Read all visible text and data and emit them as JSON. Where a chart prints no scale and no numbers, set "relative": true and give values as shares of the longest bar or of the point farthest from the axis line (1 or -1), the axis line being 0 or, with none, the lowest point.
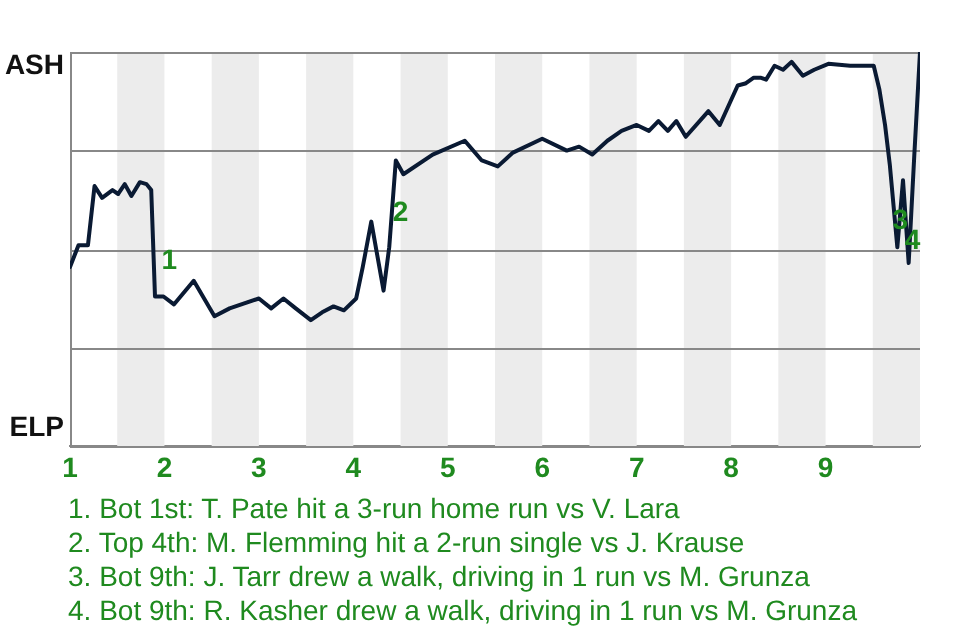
{
  "chart_data": {
    "type": "line",
    "relative": true,
    "xlim": [
      1,
      10
    ],
    "xticks": [
      1,
      2,
      3,
      4,
      5,
      6,
      7,
      8,
      9
    ],
    "grid": "y",
    "legend": false,
    "marker": "none",
    "line_style": "solid",
    "series": [
      {
        "color": "#0a1a33",
        "x": [
          1,
          1.09,
          1.19,
          1.26,
          1.34,
          1.45,
          1.51,
          1.58,
          1.65,
          1.74,
          1.81,
          1.86,
          1.9,
          1.99,
          2.1,
          2.31,
          2.53,
          2.69,
          3,
          3.13,
          3.26,
          3.39,
          3.55,
          3.67,
          3.79,
          3.9,
          4.03,
          4.1,
          4.19,
          4.32,
          4.38,
          4.45,
          4.53,
          4.84,
          5.18,
          5.36,
          5.53,
          5.69,
          6,
          6.26,
          6.39,
          6.53,
          6.69,
          6.84,
          7,
          7.13,
          7.23,
          7.33,
          7.42,
          7.52,
          7.76,
          7.88,
          8.07,
          8.15,
          8.24,
          8.31,
          8.37,
          8.46,
          8.55,
          8.64,
          8.76,
          8.88,
          9.03,
          9.26,
          9.51,
          9.57,
          9.63,
          9.68,
          9.76,
          9.82,
          9.88,
          9.94,
          10
        ],
        "values": [
          0.455,
          0.51,
          0.51,
          0.66,
          0.63,
          0.65,
          0.64,
          0.665,
          0.635,
          0.67,
          0.665,
          0.65,
          0.38,
          0.38,
          0.36,
          0.42,
          0.33,
          0.35,
          0.375,
          0.35,
          0.375,
          0.35,
          0.32,
          0.34,
          0.355,
          0.345,
          0.375,
          0.455,
          0.57,
          0.395,
          0.505,
          0.725,
          0.69,
          0.74,
          0.775,
          0.725,
          0.71,
          0.745,
          0.78,
          0.75,
          0.76,
          0.74,
          0.775,
          0.8,
          0.815,
          0.8,
          0.825,
          0.8,
          0.825,
          0.785,
          0.85,
          0.815,
          0.915,
          0.92,
          0.935,
          0.935,
          0.93,
          0.965,
          0.955,
          0.975,
          0.94,
          0.955,
          0.97,
          0.965,
          0.965,
          0.905,
          0.815,
          0.715,
          0.505,
          0.675,
          0.465,
          0.74,
          1
        ]
      }
    ],
    "bands": [
      {
        "axis": "x",
        "from": 1.5,
        "to": 2,
        "color": "#ececec"
      },
      {
        "axis": "x",
        "from": 2.5,
        "to": 3,
        "color": "#ececec"
      },
      {
        "axis": "x",
        "from": 3.5,
        "to": 4,
        "color": "#ececec"
      },
      {
        "axis": "x",
        "from": 4.5,
        "to": 5,
        "color": "#ececec"
      },
      {
        "axis": "x",
        "from": 5.5,
        "to": 6,
        "color": "#ececec"
      },
      {
        "axis": "x",
        "from": 6.5,
        "to": 7,
        "color": "#ececec"
      },
      {
        "axis": "x",
        "from": 7.5,
        "to": 8,
        "color": "#ececec"
      },
      {
        "axis": "x",
        "from": 8.5,
        "to": 9,
        "color": "#ececec"
      },
      {
        "axis": "x",
        "from": 9.5,
        "to": 10,
        "color": "#ececec"
      }
    ],
    "annotations": [
      "ASH",
      "ELP",
      {
        "text": "1",
        "x": 2.05,
        "y": 0.47
      },
      {
        "text": "2",
        "x": 4.5,
        "y": 0.59
      },
      {
        "text": "3",
        "x": 9.79,
        "y": 0.57
      },
      {
        "text": "4",
        "x": 9.92,
        "y": 0.52
      },
      "1. Bot 1st: T. Pate hit a 3-run home run vs V. Lara",
      "2. Top 4th: M. Flemming hit a 2-run single vs J. Krause",
      "3. Bot 9th: J. Tarr drew a walk, driving in 1 run vs M. Grunza",
      "4. Bot 9th: R. Kasher drew a walk, driving in 1 run vs M. Grunza"
    ]
  }
}
